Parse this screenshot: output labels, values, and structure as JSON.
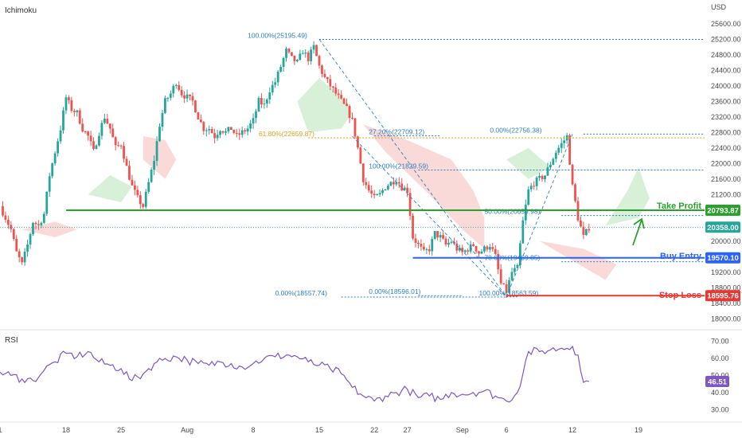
{
  "chart_title": "Ichimoku",
  "currency": "USD",
  "rsi_title": "RSI",
  "colors": {
    "up": "#26a69a",
    "down": "#ef5350",
    "green": "#2ca02c",
    "blue": "#2962ff",
    "red": "#e53935",
    "fib_blue": "#2e7fbf",
    "fib_orange": "#e0a020",
    "rsi": "#7e57c2",
    "cloud_green": "#cdeccd",
    "cloud_red": "#f9d0d0"
  },
  "chart_data": {
    "type": "candlestick",
    "price_ylim": [
      17800,
      25800
    ],
    "price_ticks": [
      "25600.00",
      "25200.00",
      "24800.00",
      "24400.00",
      "24000.00",
      "23600.00",
      "23200.00",
      "22800.00",
      "22400.00",
      "22000.00",
      "21600.00",
      "21200.00",
      "20800.00",
      "20400.00",
      "20000.00",
      "19600.00",
      "19200.00",
      "18800.00",
      "18400.00",
      "18000.00"
    ],
    "x_range": [
      0,
      64
    ],
    "x_ticks": [
      {
        "i": 0,
        "label": "1"
      },
      {
        "i": 6,
        "label": "18"
      },
      {
        "i": 11,
        "label": "25"
      },
      {
        "i": 17,
        "label": "Aug"
      },
      {
        "i": 23,
        "label": "8"
      },
      {
        "i": 29,
        "label": "15"
      },
      {
        "i": 34,
        "label": "22"
      },
      {
        "i": 37,
        "label": "27"
      },
      {
        "i": 42,
        "label": "Sep"
      },
      {
        "i": 46,
        "label": "6"
      },
      {
        "i": 52,
        "label": "12"
      },
      {
        "i": 58,
        "label": "19"
      }
    ],
    "close_path": [
      [
        0,
        20900
      ],
      [
        0.5,
        20600
      ],
      [
        1,
        20300
      ],
      [
        1.5,
        19700
      ],
      [
        2,
        19400
      ],
      [
        2.5,
        19900
      ],
      [
        3,
        20500
      ],
      [
        3.5,
        20400
      ],
      [
        4,
        20700
      ],
      [
        4.5,
        21700
      ],
      [
        5,
        22300
      ],
      [
        5.5,
        22900
      ],
      [
        6,
        23700
      ],
      [
        6.5,
        23400
      ],
      [
        7,
        23300
      ],
      [
        7.5,
        22900
      ],
      [
        8,
        22700
      ],
      [
        8.5,
        22300
      ],
      [
        9,
        22800
      ],
      [
        9.5,
        23200
      ],
      [
        10,
        22900
      ],
      [
        10.5,
        22400
      ],
      [
        11,
        22500
      ],
      [
        11.5,
        21900
      ],
      [
        12,
        21400
      ],
      [
        12.5,
        21100
      ],
      [
        13,
        20900
      ],
      [
        13.5,
        21500
      ],
      [
        14,
        22100
      ],
      [
        14.5,
        23000
      ],
      [
        15,
        23600
      ],
      [
        15.5,
        23800
      ],
      [
        16,
        24100
      ],
      [
        16.5,
        23800
      ],
      [
        17,
        23700
      ],
      [
        17.5,
        23600
      ],
      [
        18,
        23200
      ],
      [
        18.5,
        22900
      ],
      [
        19,
        22900
      ],
      [
        19.5,
        22700
      ],
      [
        20,
        22900
      ],
      [
        20.5,
        22800
      ],
      [
        21,
        22900
      ],
      [
        21.5,
        22700
      ],
      [
        22,
        22800
      ],
      [
        22.5,
        22900
      ],
      [
        23,
        23100
      ],
      [
        23.5,
        23600
      ],
      [
        24,
        23500
      ],
      [
        24.5,
        23900
      ],
      [
        25,
        24100
      ],
      [
        25.5,
        24500
      ],
      [
        26,
        24900
      ],
      [
        26.5,
        24700
      ],
      [
        27,
        24600
      ],
      [
        27.5,
        24900
      ],
      [
        28,
        24700
      ],
      [
        28.5,
        25000
      ],
      [
        29,
        24500
      ],
      [
        29.5,
        24200
      ],
      [
        30,
        24000
      ],
      [
        30.5,
        23800
      ],
      [
        31,
        23600
      ],
      [
        31.5,
        23400
      ],
      [
        32,
        23100
      ],
      [
        32.5,
        22400
      ],
      [
        33,
        21600
      ],
      [
        33.5,
        21300
      ],
      [
        34,
        21100
      ],
      [
        34.5,
        21200
      ],
      [
        35,
        21400
      ],
      [
        35.5,
        21500
      ],
      [
        36,
        21600
      ],
      [
        36.5,
        21400
      ],
      [
        37,
        21300
      ],
      [
        37.5,
        20100
      ],
      [
        38,
        19900
      ],
      [
        38.5,
        19700
      ],
      [
        39,
        19800
      ],
      [
        39.5,
        20200
      ],
      [
        40,
        20100
      ],
      [
        40.5,
        19900
      ],
      [
        41,
        20000
      ],
      [
        41.5,
        19800
      ],
      [
        42,
        19700
      ],
      [
        42.5,
        19800
      ],
      [
        43,
        19900
      ],
      [
        43.5,
        19700
      ],
      [
        44,
        19800
      ],
      [
        44.5,
        19900
      ],
      [
        45,
        19600
      ],
      [
        45.5,
        18900
      ],
      [
        46,
        18700
      ],
      [
        46.5,
        19200
      ],
      [
        47,
        19300
      ],
      [
        47.5,
        20500
      ],
      [
        48,
        21300
      ],
      [
        48.5,
        21500
      ],
      [
        49,
        21600
      ],
      [
        49.5,
        21700
      ],
      [
        50,
        22000
      ],
      [
        50.5,
        22300
      ],
      [
        51,
        22500
      ],
      [
        51.5,
        22700
      ],
      [
        52,
        21400
      ],
      [
        52.5,
        20600
      ],
      [
        53,
        20100
      ],
      [
        53.5,
        20358
      ]
    ],
    "ichimoku_cloud_green": [
      [
        [
          27,
          23600
        ],
        [
          29,
          24200
        ],
        [
          31,
          23700
        ],
        [
          32,
          23300
        ],
        [
          31,
          22900
        ],
        [
          28,
          22800
        ]
      ],
      [
        [
          46,
          22100
        ],
        [
          48,
          22400
        ],
        [
          50,
          21900
        ],
        [
          48,
          21600
        ]
      ],
      [
        [
          55,
          20400
        ],
        [
          57,
          21300
        ],
        [
          58,
          21900
        ],
        [
          59,
          21100
        ],
        [
          58,
          20600
        ]
      ],
      [
        [
          8,
          21200
        ],
        [
          10,
          21700
        ],
        [
          12,
          21400
        ],
        [
          11,
          21000
        ]
      ]
    ],
    "ichimoku_cloud_red": [
      [
        [
          33,
          23000
        ],
        [
          37,
          22600
        ],
        [
          41,
          22100
        ],
        [
          43,
          21300
        ],
        [
          44,
          20600
        ],
        [
          44,
          19800
        ],
        [
          42,
          20300
        ],
        [
          39,
          21200
        ],
        [
          35,
          22300
        ]
      ],
      [
        [
          13,
          22700
        ],
        [
          15,
          22600
        ],
        [
          16,
          22100
        ],
        [
          15,
          21600
        ],
        [
          13,
          22100
        ]
      ],
      [
        [
          2,
          20300
        ],
        [
          5,
          20100
        ],
        [
          7,
          20300
        ],
        [
          5,
          20500
        ]
      ],
      [
        [
          49,
          20000
        ],
        [
          52,
          19500
        ],
        [
          55,
          19000
        ],
        [
          56,
          19400
        ],
        [
          53,
          19800
        ]
      ]
    ],
    "levels": [
      {
        "name": "Take Profit",
        "price": 20793.87,
        "label": "20793.87",
        "color": "#2ca02c",
        "from": 6
      },
      {
        "name": "Buy Entry",
        "price": 19570.1,
        "label": "19570.10",
        "color": "#2962ff",
        "from": 37.5
      },
      {
        "name": "Stop Loss",
        "price": 18595.76,
        "label": "18595.76",
        "color": "#e53935",
        "from": 46
      },
      {
        "name": "",
        "price": 20358.0,
        "label": "20358.00",
        "color": "#26a69a",
        "from": 0,
        "dotted": true
      }
    ],
    "fib_lines": [
      {
        "text": "100.00%(25195.49)",
        "price": 25195.49,
        "from": 29,
        "to": 64,
        "color": "#2e7fbf",
        "label_at": 22.5
      },
      {
        "text": "61.80%(22659.87)",
        "price": 22659.87,
        "from": 28,
        "to": 64,
        "color": "#e0a020",
        "label_at": 23.5
      },
      {
        "text": "27.20%(22709.12)",
        "price": 22709.12,
        "from": 34,
        "to": 40,
        "color": "#2e7fbf",
        "label_at": 33.5
      },
      {
        "text": "0.00%(22756.38)",
        "price": 22756.38,
        "from": 53,
        "to": 64,
        "color": "#2e7fbf",
        "label_at": 44.5
      },
      {
        "text": "100.00%(21829.59)",
        "price": 21829.59,
        "from": 38,
        "to": 64,
        "color": "#2e7fbf",
        "label_at": 33.5
      },
      {
        "text": "50.00%(20659.98)",
        "price": 20659.98,
        "from": 51,
        "to": 64,
        "color": "#2e7fbf",
        "label_at": 44
      },
      {
        "text": "78.60%(19469.85)",
        "price": 19469.85,
        "from": 51,
        "to": 64,
        "color": "#2e7fbf",
        "label_at": 44
      },
      {
        "text": "100.00%(18563.59)",
        "price": 18563.59,
        "from": 46,
        "to": 47,
        "color": "#2e7fbf",
        "label_at": 43.5
      },
      {
        "text": "0.00%(18596.01)",
        "price": 18596.01,
        "from": 38,
        "to": 42,
        "color": "#2e7fbf",
        "label_at": 33.5
      },
      {
        "text": "0.00%(18557.74)",
        "price": 18557.74,
        "from": 31,
        "to": 46,
        "color": "#2e7fbf",
        "label_at": 25
      }
    ],
    "rsi": {
      "ylim": [
        25,
        75
      ],
      "ticks": [
        "70.00",
        "60.00",
        "50.00",
        "40.00",
        "30.00"
      ],
      "current": 46.51,
      "current_label": "46.51",
      "values": [
        [
          0,
          52
        ],
        [
          1,
          50
        ],
        [
          2,
          48
        ],
        [
          3,
          47
        ],
        [
          4,
          53
        ],
        [
          5,
          58
        ],
        [
          6,
          63
        ],
        [
          7,
          61
        ],
        [
          8,
          64
        ],
        [
          9,
          58
        ],
        [
          10,
          56
        ],
        [
          11,
          54
        ],
        [
          12,
          47
        ],
        [
          13,
          51
        ],
        [
          14,
          57
        ],
        [
          15,
          60
        ],
        [
          16,
          61
        ],
        [
          17,
          59
        ],
        [
          18,
          57
        ],
        [
          19,
          56
        ],
        [
          20,
          58
        ],
        [
          21,
          57
        ],
        [
          22,
          55
        ],
        [
          23,
          57
        ],
        [
          24,
          60
        ],
        [
          25,
          61
        ],
        [
          26,
          62
        ],
        [
          27,
          61
        ],
        [
          28,
          58
        ],
        [
          29,
          56
        ],
        [
          30,
          54
        ],
        [
          31,
          51
        ],
        [
          32,
          43
        ],
        [
          33,
          38
        ],
        [
          34,
          35
        ],
        [
          35,
          38
        ],
        [
          36,
          40
        ],
        [
          37,
          42
        ],
        [
          38,
          37
        ],
        [
          39,
          38
        ],
        [
          40,
          36
        ],
        [
          41,
          40
        ],
        [
          42,
          39
        ],
        [
          43,
          40
        ],
        [
          44,
          41
        ],
        [
          45,
          38
        ],
        [
          46,
          35
        ],
        [
          47,
          40
        ],
        [
          48,
          64
        ],
        [
          49,
          64
        ],
        [
          50,
          65
        ],
        [
          51,
          66
        ],
        [
          52,
          67
        ],
        [
          52.5,
          62
        ],
        [
          53,
          46
        ],
        [
          53.5,
          46.51
        ]
      ]
    }
  }
}
